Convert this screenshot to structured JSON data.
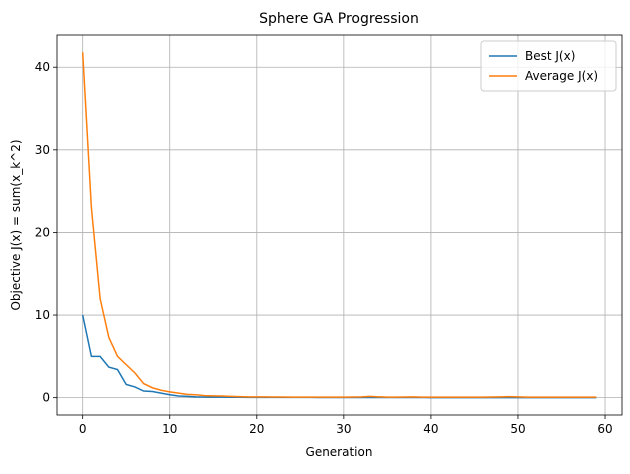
{
  "chart_data": {
    "type": "line",
    "title": "Sphere GA Progression",
    "x_label": "Generation",
    "y_label": "Objective J(x) = sum(x_k^2)",
    "x": [
      0,
      1,
      2,
      3,
      4,
      5,
      6,
      7,
      8,
      9,
      10,
      11,
      12,
      13,
      14,
      15,
      16,
      17,
      18,
      19,
      20,
      21,
      22,
      23,
      24,
      25,
      26,
      27,
      28,
      29,
      30,
      31,
      32,
      33,
      34,
      35,
      36,
      37,
      38,
      39,
      40,
      41,
      42,
      43,
      44,
      45,
      46,
      47,
      48,
      49,
      50,
      51,
      52,
      53,
      54,
      55,
      56,
      57,
      58,
      59
    ],
    "series": [
      {
        "name": "Best J(x)",
        "color": "#1f77b4",
        "values": [
          10,
          5,
          5,
          3.7,
          3.4,
          1.6,
          1.3,
          0.8,
          0.75,
          0.55,
          0.35,
          0.2,
          0.15,
          0.1,
          0.08,
          0.07,
          0.06,
          0.05,
          0.05,
          0.04,
          0.04,
          0.04,
          0.03,
          0.03,
          0.03,
          0.03,
          0.03,
          0.02,
          0.02,
          0.02,
          0.02,
          0.02,
          0.02,
          0.02,
          0.02,
          0.02,
          0.02,
          0.02,
          0.02,
          0.02,
          0.01,
          0.01,
          0.01,
          0.01,
          0.01,
          0.01,
          0.01,
          0.01,
          0.01,
          0.01,
          0.01,
          0.01,
          0.01,
          0.01,
          0.01,
          0.01,
          0.01,
          0.01,
          0.01,
          0.01
        ]
      },
      {
        "name": "Average J(x)",
        "color": "#ff7f0e",
        "values": [
          41.8,
          23,
          12,
          7.3,
          5,
          4,
          3,
          1.7,
          1.2,
          0.9,
          0.7,
          0.55,
          0.4,
          0.35,
          0.25,
          0.22,
          0.2,
          0.15,
          0.12,
          0.1,
          0.1,
          0.09,
          0.08,
          0.08,
          0.07,
          0.07,
          0.07,
          0.06,
          0.06,
          0.06,
          0.07,
          0.08,
          0.1,
          0.15,
          0.1,
          0.07,
          0.06,
          0.08,
          0.09,
          0.07,
          0.06,
          0.06,
          0.06,
          0.06,
          0.06,
          0.06,
          0.07,
          0.08,
          0.1,
          0.12,
          0.09,
          0.07,
          0.06,
          0.06,
          0.06,
          0.06,
          0.06,
          0.06,
          0.06,
          0.06
        ]
      }
    ],
    "xlim": [
      -2.95,
      61.95
    ],
    "ylim": [
      -2.1,
      43.9
    ],
    "xticks": [
      0,
      10,
      20,
      30,
      40,
      50,
      60
    ],
    "yticks": [
      0,
      10,
      20,
      30,
      40
    ],
    "grid": true,
    "legend": "upper right"
  }
}
